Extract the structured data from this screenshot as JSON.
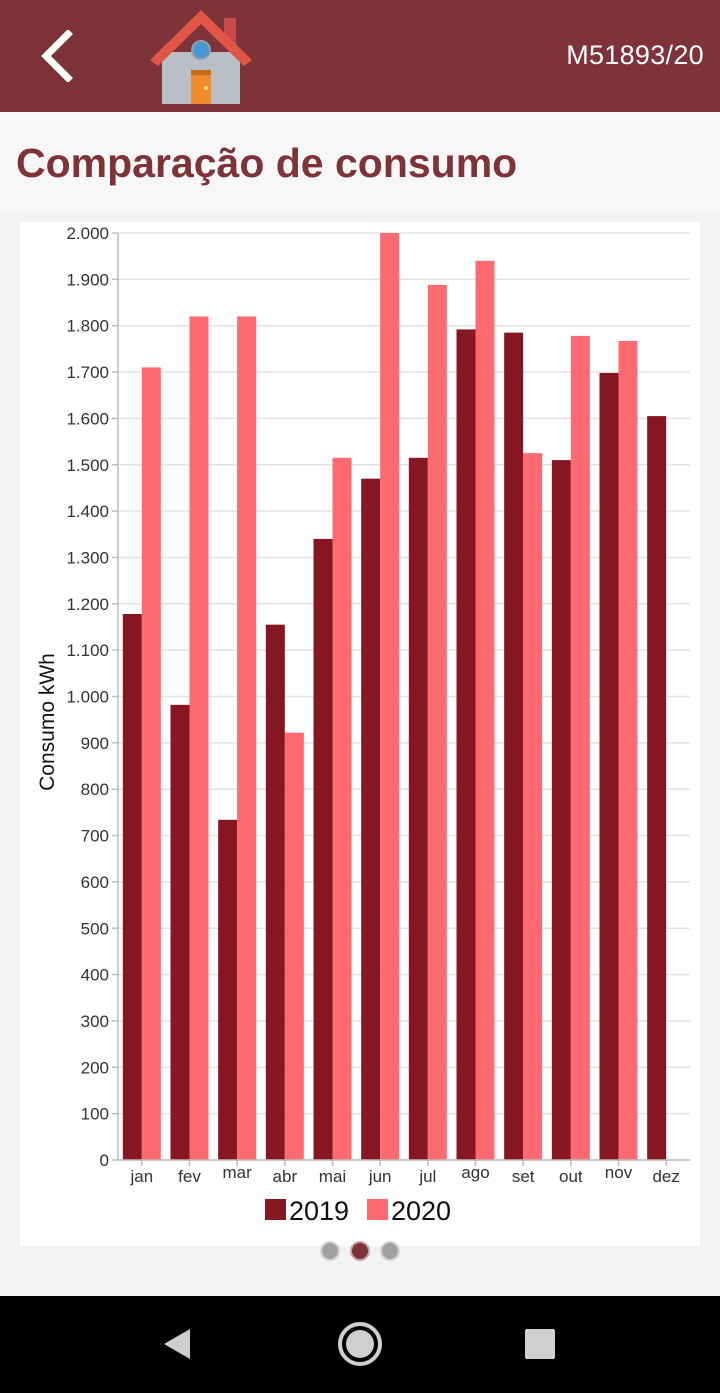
{
  "header": {
    "back_icon": "chevron-left-icon",
    "logo_icon": "house-icon",
    "account_id": "M51893/20"
  },
  "page": {
    "title": "Comparação de consumo"
  },
  "colors": {
    "brand": "#7d3338",
    "series_2019": "#861722",
    "series_2020": "#ff6a70"
  },
  "chart_data": {
    "type": "bar",
    "ylabel": "Consumo kWh",
    "xlabel": "",
    "ylim": [
      0,
      2000
    ],
    "yticks": [
      {
        "value": 0,
        "label": "0"
      },
      {
        "value": 100,
        "label": "100"
      },
      {
        "value": 200,
        "label": "200"
      },
      {
        "value": 300,
        "label": "300"
      },
      {
        "value": 400,
        "label": "400"
      },
      {
        "value": 500,
        "label": "500"
      },
      {
        "value": 600,
        "label": "600"
      },
      {
        "value": 700,
        "label": "700"
      },
      {
        "value": 800,
        "label": "800"
      },
      {
        "value": 900,
        "label": "900"
      },
      {
        "value": 1000,
        "label": "1.000"
      },
      {
        "value": 1100,
        "label": "1.100"
      },
      {
        "value": 1200,
        "label": "1.200"
      },
      {
        "value": 1300,
        "label": "1.300"
      },
      {
        "value": 1400,
        "label": "1.400"
      },
      {
        "value": 1500,
        "label": "1.500"
      },
      {
        "value": 1600,
        "label": "1.600"
      },
      {
        "value": 1700,
        "label": "1.700"
      },
      {
        "value": 1800,
        "label": "1.800"
      },
      {
        "value": 1900,
        "label": "1.900"
      },
      {
        "value": 2000,
        "label": "2.000"
      }
    ],
    "categories": [
      "jan",
      "fev",
      "mar",
      "abr",
      "mai",
      "jun",
      "jul",
      "ago",
      "set",
      "out",
      "nov",
      "dez"
    ],
    "series": [
      {
        "name": "2019",
        "color": "#861722",
        "values": [
          1178,
          982,
          734,
          1155,
          1340,
          1470,
          1515,
          1792,
          1785,
          1510,
          1698,
          1605
        ]
      },
      {
        "name": "2020",
        "color": "#ff6a70",
        "values": [
          1710,
          1820,
          1820,
          922,
          1515,
          2000,
          1888,
          1940,
          1525,
          1778,
          1767,
          null
        ]
      }
    ],
    "grid": true,
    "legend": "bottom"
  },
  "pager": {
    "pages": [
      {
        "active": false
      },
      {
        "active": true
      },
      {
        "active": false
      }
    ]
  },
  "system_nav": {
    "back_icon": "triangle-back-icon",
    "home_icon": "circle-home-icon",
    "recents_icon": "square-recents-icon"
  }
}
